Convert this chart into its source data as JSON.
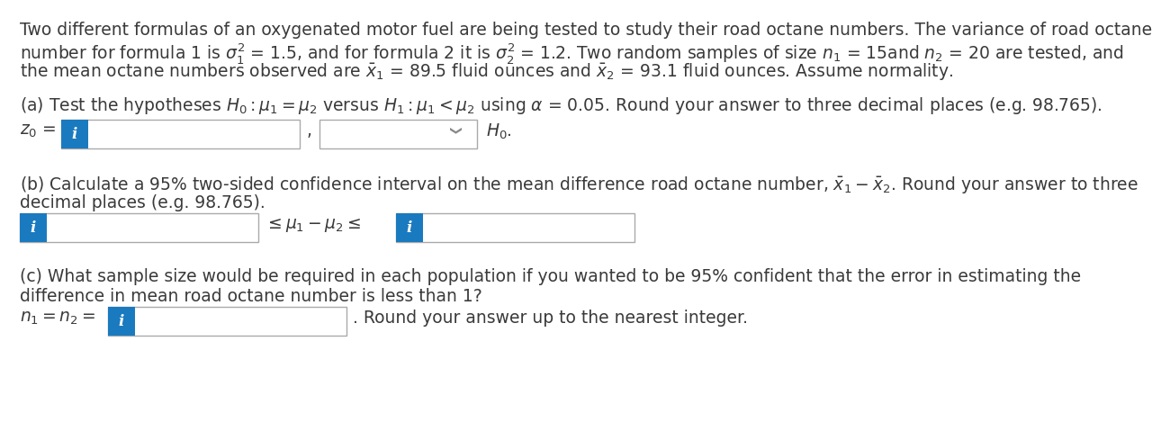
{
  "bg_color": "#ffffff",
  "text_color": "#3a3a3a",
  "blue_color": "#1a7abf",
  "box_border_color": "#aaaaaa",
  "font_size": 13.5,
  "line1": "Two different formulas of an oxygenated motor fuel are being tested to study their road octane numbers. The variance of road octane",
  "line2a": "number for formula 1 is ",
  "line2b": " = 1.5, and for formula 2 it is ",
  "line2c": " = 1.2. Two random samples of size ",
  "line2d": " = 15and ",
  "line2e": " = 20 are tested, and",
  "line3a": "the mean octane numbers observed are ",
  "line3b": " = 89.5 fluid ounces and ",
  "line3c": " = 93.1 fluid ounces. Assume normality.",
  "part_a": "(a) Test the hypotheses $H_0 : \\mu_1 = \\mu_2$ versus $H_1 : \\mu_1 < \\mu_2$ using $\\alpha$ = 0.05. Round your answer to three decimal places (e.g. 98.765).",
  "z0_label": "$z_0$ =",
  "h0_label": "$H_0$.",
  "part_b_line1": "(b) Calculate a 95% two-sided confidence interval on the mean difference road octane number, $\\bar{x}_1 - \\bar{x}_2$. Round your answer to three",
  "part_b_line2": "decimal places (e.g. 98.765).",
  "mid_formula": "$\\leq \\mu_1 - \\mu_2 \\leq$",
  "part_c_line1": "(c) What sample size would be required in each population if you wanted to be 95% confident that the error in estimating the",
  "part_c_line2": "difference in mean road octane number is less than 1?",
  "n_label": "$n_1 = n_2 =$",
  "round_label": ". Round your answer up to the nearest integer."
}
